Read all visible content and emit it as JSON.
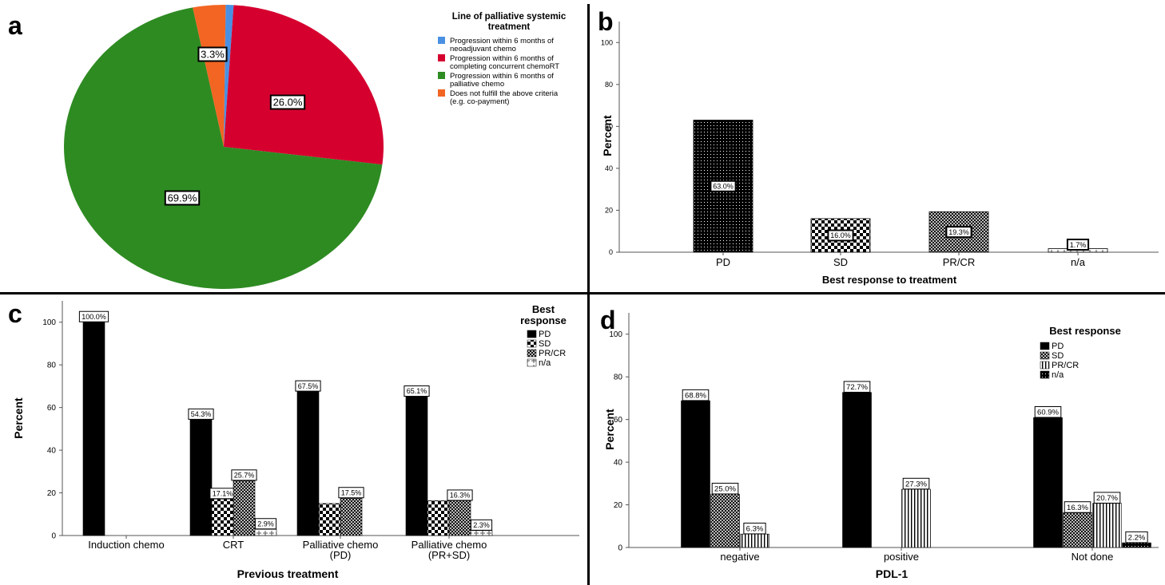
{
  "chart_data": [
    {
      "panel": "a",
      "type": "pie",
      "legend_title": "Line of palliative systemic treatment",
      "legend_title_lines": [
        "Line of palliative systemic",
        "treatment"
      ],
      "slices": [
        {
          "label": "Progression within 6 months of neoadjuvant chemo",
          "label_lines": [
            "Progression within 6 months of",
            "neoadjuvant chemo"
          ],
          "value": 0.8,
          "color": "#4a90e2",
          "data_label": ""
        },
        {
          "label": "Progression within 6 months of completing concurrent chemoRT",
          "label_lines": [
            "Progression within 6 months of",
            "completing concurrent chemoRT"
          ],
          "value": 26.0,
          "color": "#d6002f",
          "data_label": "26.0%"
        },
        {
          "label": "Progression within 6 months of palliative chemo",
          "label_lines": [
            "Progression within 6 months of",
            "palliative chemo"
          ],
          "value": 69.9,
          "color": "#2e8b22",
          "data_label": "69.9%"
        },
        {
          "label": "Does not fulfill the above criteria (e.g. co-payment)",
          "label_lines": [
            "Does not fulfill the above criteria",
            "(e.g. co-payment)"
          ],
          "value": 3.3,
          "color": "#f26522",
          "data_label": "3.3%"
        }
      ]
    },
    {
      "panel": "b",
      "type": "bar",
      "xlabel": "Best response to treatment",
      "ylabel": "Percent",
      "ylim": [
        0,
        110
      ],
      "yticks": [
        0,
        20,
        40,
        60,
        80,
        100
      ],
      "categories": [
        "PD",
        "SD",
        "PR/CR",
        "n/a"
      ],
      "values": [
        63.0,
        16.0,
        19.3,
        1.7
      ],
      "patterns": [
        "pdots",
        "pcheck",
        "pcross",
        "pplus"
      ],
      "data_labels": [
        "63.0%",
        "16.0%",
        "19.3%",
        "1.7%"
      ]
    },
    {
      "panel": "c",
      "type": "bar",
      "xlabel": "Previous treatment",
      "ylabel": "Percent",
      "ylim": [
        0,
        110
      ],
      "yticks": [
        0,
        20,
        40,
        60,
        80,
        100
      ],
      "categories": [
        "Induction chemo",
        "CRT",
        "Palliative chemo\n(PD)",
        "Palliative chemo\n(PR+SD)"
      ],
      "legend_title": "Best\nresponse",
      "series": [
        {
          "name": "PD",
          "pattern": "psolid",
          "values": [
            100.0,
            54.3,
            67.5,
            65.1
          ],
          "labels": [
            "100.0%",
            "54.3%",
            "67.5%",
            "65.1%"
          ]
        },
        {
          "name": "SD",
          "pattern": "pcheck",
          "values": [
            0,
            17.1,
            15.0,
            16.3
          ],
          "labels": [
            "",
            "17.1%",
            "",
            ""
          ]
        },
        {
          "name": "PR/CR",
          "pattern": "pcross",
          "values": [
            0,
            25.7,
            17.5,
            16.3
          ],
          "labels": [
            "",
            "25.7%",
            "17.5%",
            "16.3%"
          ]
        },
        {
          "name": "n/a",
          "pattern": "pplus",
          "values": [
            0,
            2.9,
            0,
            2.3
          ],
          "labels": [
            "",
            "2.9%",
            "",
            "2.3%"
          ]
        }
      ]
    },
    {
      "panel": "d",
      "type": "bar",
      "xlabel": "PDL-1",
      "ylabel": "Percent",
      "ylim": [
        0,
        110
      ],
      "yticks": [
        0,
        20,
        40,
        60,
        80,
        100
      ],
      "categories": [
        "negative",
        "positive",
        "Not done"
      ],
      "legend_title": "Best response",
      "series": [
        {
          "name": "PD",
          "pattern": "psolid",
          "values": [
            68.8,
            72.7,
            60.9
          ],
          "labels": [
            "68.8%",
            "72.7%",
            "60.9%"
          ]
        },
        {
          "name": "SD",
          "pattern": "pcross",
          "values": [
            25.0,
            0,
            16.3
          ],
          "labels": [
            "25.0%",
            "",
            "16.3%"
          ]
        },
        {
          "name": "PR/CR",
          "pattern": "pvert",
          "values": [
            6.3,
            27.3,
            20.7
          ],
          "labels": [
            "6.3%",
            "27.3%",
            "20.7%"
          ]
        },
        {
          "name": "n/a",
          "pattern": "pblock",
          "values": [
            0,
            0,
            2.2
          ],
          "labels": [
            "",
            "",
            "2.2%"
          ]
        }
      ]
    }
  ],
  "panel_letters": [
    "a",
    "b",
    "c",
    "d"
  ]
}
